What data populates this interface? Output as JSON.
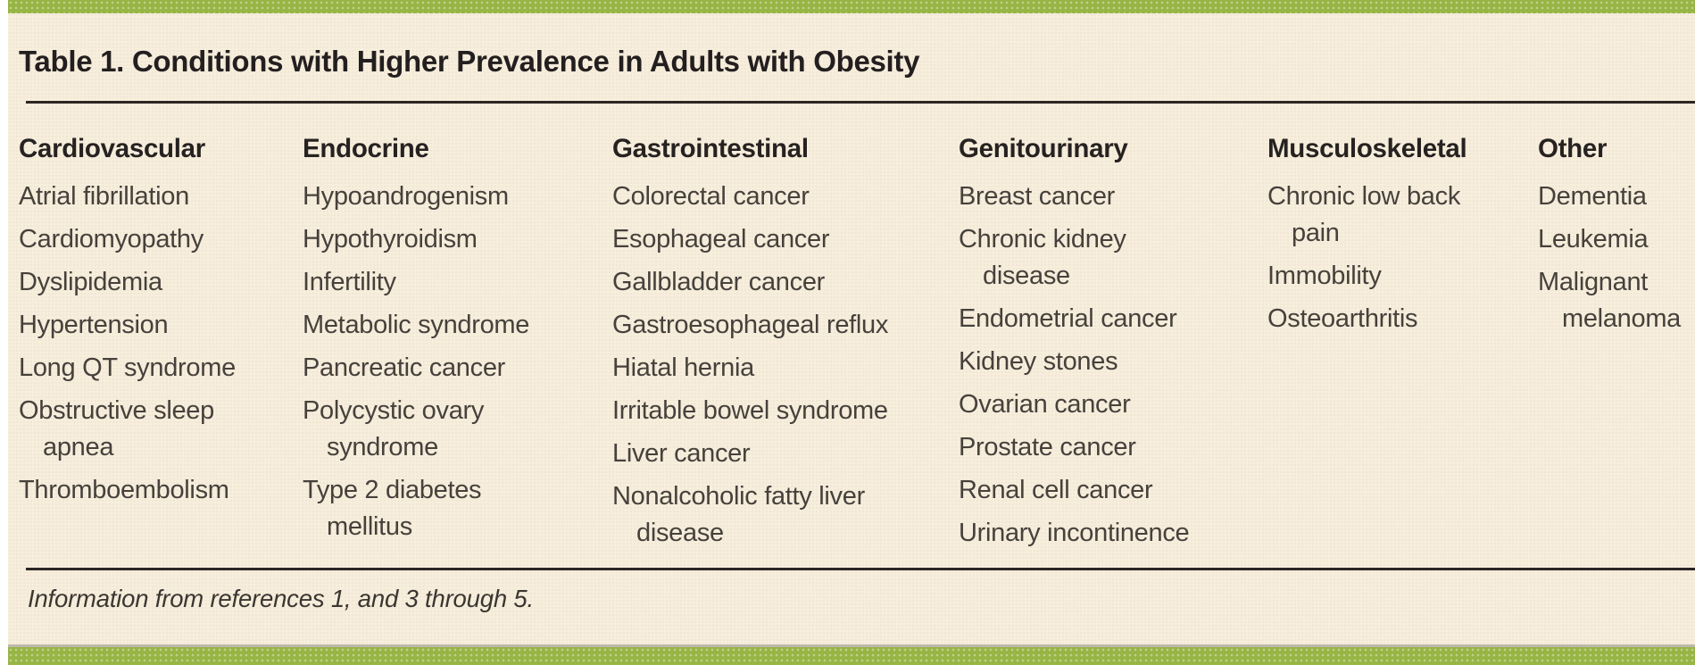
{
  "title": "Table 1. Conditions with Higher Prevalence in Adults with Obesity",
  "columns": [
    {
      "header": "Cardiovascular",
      "items": [
        "Atrial fibrillation",
        "Cardiomyopathy",
        "Dyslipidemia",
        "Hypertension",
        "Long QT syndrome",
        "Obstructive sleep\napnea",
        "Thromboembolism"
      ]
    },
    {
      "header": "Endocrine",
      "items": [
        "Hypoandrogenism",
        "Hypothyroidism",
        "Infertility",
        "Metabolic syndrome",
        "Pancreatic cancer",
        "Polycystic ovary\nsyndrome",
        "Type 2 diabetes\nmellitus"
      ]
    },
    {
      "header": "Gastrointestinal",
      "items": [
        "Colorectal cancer",
        "Esophageal cancer",
        "Gallbladder cancer",
        "Gastroesophageal reflux",
        "Hiatal hernia",
        "Irritable bowel syndrome",
        "Liver cancer",
        "Nonalcoholic fatty liver\ndisease"
      ]
    },
    {
      "header": "Genitourinary",
      "items": [
        "Breast cancer",
        "Chronic kidney\ndisease",
        "Endometrial cancer",
        "Kidney stones",
        "Ovarian cancer",
        "Prostate cancer",
        "Renal cell cancer",
        "Urinary incontinence"
      ]
    },
    {
      "header": "Musculoskeletal",
      "items": [
        "Chronic low back\npain",
        "Immobility",
        "Osteoarthritis"
      ]
    },
    {
      "header": "Other",
      "items": [
        "Dementia",
        "Leukemia",
        "Malignant\nmelanoma"
      ]
    }
  ],
  "footnote": "Information from references 1, and 3 through 5.",
  "colors": {
    "accent_green": "#97b545",
    "background_cream": "#f7eedd",
    "rule_dark": "#2b2624",
    "title_text": "#231f20",
    "body_text": "#46413c",
    "bottom_bar_separator": "#bdb8ac"
  }
}
